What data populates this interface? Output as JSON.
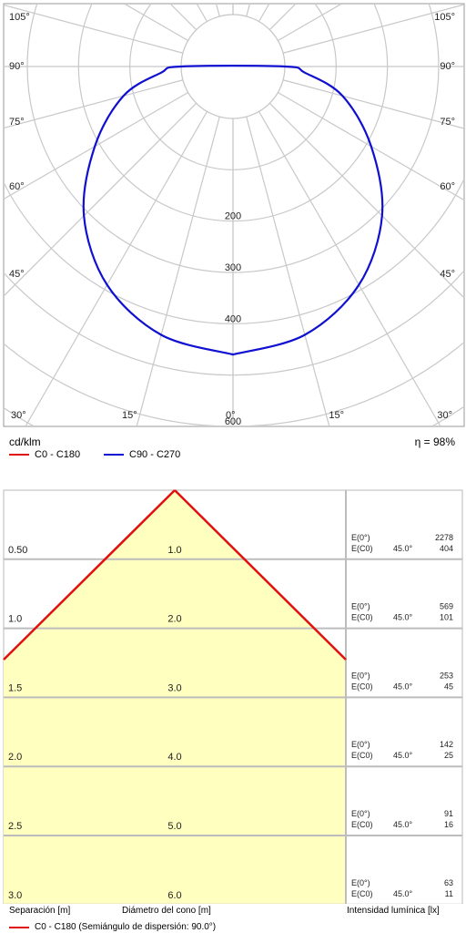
{
  "polar": {
    "unit_label": "cd/klm",
    "efficiency_label": "η = 98%",
    "radial_labels": [
      "200",
      "300",
      "400",
      "600"
    ],
    "angle_labels_left": [
      "105°",
      "90°",
      "75°",
      "60°",
      "45°",
      "30°",
      "15°",
      "0°"
    ],
    "angle_labels_right": [
      "105°",
      "90°",
      "75°",
      "60°",
      "45°",
      "15°",
      "30°"
    ]
  },
  "legend": {
    "c0": {
      "label": "C0 - C180",
      "color": "#e01010"
    },
    "c90": {
      "label": "C90 - C270",
      "color": "#1010d0"
    }
  },
  "chart_data": [
    {
      "type": "polar-line",
      "radial_unit": "cd/klm",
      "radial_ticks": [
        200,
        300,
        400,
        600
      ],
      "series": [
        {
          "name": "C90 - C270",
          "color": "#1010d0",
          "points": [
            {
              "angle": 0,
              "value": 460
            },
            {
              "angle": 15,
              "value": 440
            },
            {
              "angle": 30,
              "value": 390
            },
            {
              "angle": 45,
              "value": 310
            },
            {
              "angle": 60,
              "value": 210
            },
            {
              "angle": 75,
              "value": 120
            },
            {
              "angle": 85,
              "value": 40
            },
            {
              "angle": 90,
              "value": 0
            }
          ]
        }
      ]
    },
    {
      "type": "table",
      "title": "cone diagram",
      "half_angle_label": "C0 - C180 (Semiángulo de dispersión: 90.0°)",
      "columns": [
        "Separación [m]",
        "Diámetro del cono [m]",
        "Intensidad lumínica [lx]"
      ],
      "rows": [
        {
          "sep": "0.50",
          "diam": "1.0",
          "e0": "2278",
          "ec0": "404"
        },
        {
          "sep": "1.0",
          "diam": "2.0",
          "e0": "569",
          "ec0": "101"
        },
        {
          "sep": "1.5",
          "diam": "3.0",
          "e0": "253",
          "ec0": "45"
        },
        {
          "sep": "2.0",
          "diam": "4.0",
          "e0": "142",
          "ec0": "25"
        },
        {
          "sep": "2.5",
          "diam": "5.0",
          "e0": "91",
          "ec0": "16"
        },
        {
          "sep": "3.0",
          "diam": "6.0",
          "e0": "63",
          "ec0": "11"
        }
      ],
      "e0_label": "E(0°)",
      "ec0_label": "E(C0)",
      "angle_value": "45.0°"
    }
  ]
}
